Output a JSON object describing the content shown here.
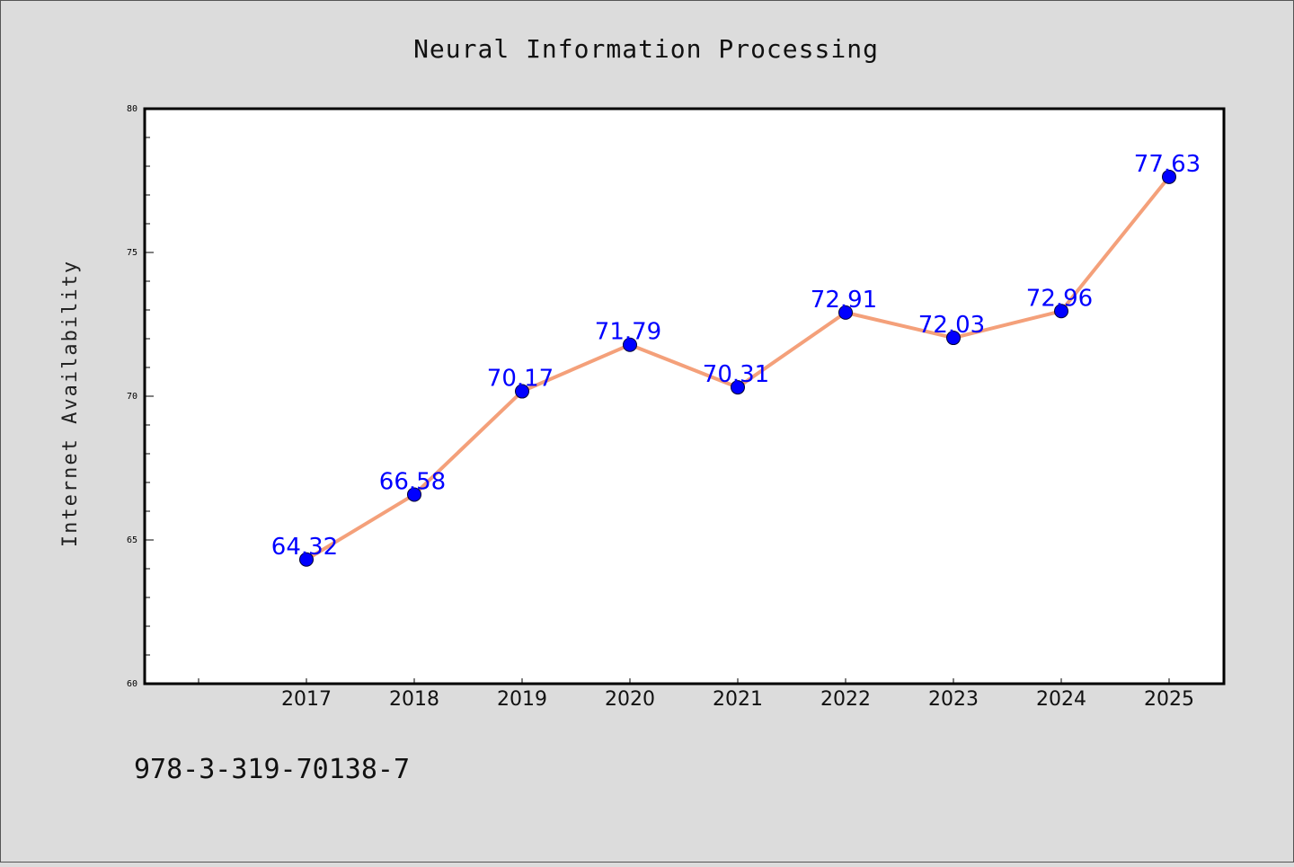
{
  "chart_data": {
    "type": "line",
    "title": "Neural Information Processing",
    "xlabel": "",
    "ylabel": "Internet Availability",
    "x": [
      "2017",
      "2018",
      "2019",
      "2020",
      "2021",
      "2022",
      "2023",
      "2024",
      "2025"
    ],
    "values": [
      64.32,
      66.58,
      70.17,
      71.79,
      70.31,
      72.91,
      72.03,
      72.96,
      77.63
    ],
    "data_labels": [
      "64.32",
      "66.58",
      "70.17",
      "71.79",
      "70.31",
      "72.91",
      "72.03",
      "72.96",
      "77.63"
    ],
    "ylim": [
      60,
      80
    ],
    "y_ticks": [
      "60",
      "65",
      "70",
      "75",
      "80"
    ],
    "grid": false,
    "legend": "none",
    "line_color": "#f4a07a",
    "marker_color": "#0000ff"
  },
  "footer": {
    "code": "978-3-319-70138-7"
  }
}
